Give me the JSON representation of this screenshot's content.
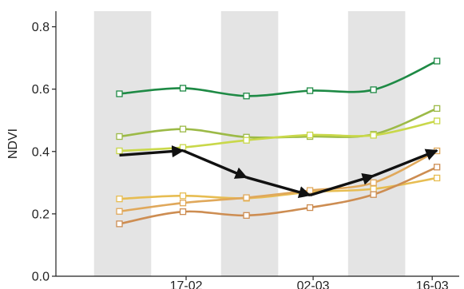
{
  "chart_data": {
    "type": "line",
    "title": "",
    "xlabel": "",
    "ylabel": "NDVI",
    "ylim": [
      0,
      0.85
    ],
    "y_ticks": [
      "0.0",
      "0.2",
      "0.4",
      "0.6",
      "0.8"
    ],
    "x_tick_labels": [
      "17-02",
      "02-03",
      "16-03"
    ],
    "x": [
      1,
      2,
      3,
      4,
      5,
      6
    ],
    "grid": false,
    "shaded_bands": [
      [
        0.6,
        1.5
      ],
      [
        2.6,
        3.5
      ],
      [
        4.6,
        5.5
      ]
    ],
    "colors": {
      "band": "#e4e4e4",
      "axis": "#222222",
      "arrow": "#111111"
    },
    "series": [
      {
        "color": "#1e8a45",
        "values": [
          0.585,
          0.603,
          0.578,
          0.595,
          0.598,
          0.69
        ]
      },
      {
        "color": "#9cba47",
        "values": [
          0.448,
          0.472,
          0.446,
          0.448,
          0.455,
          0.538
        ]
      },
      {
        "color": "#c9d84a",
        "values": [
          0.402,
          0.413,
          0.436,
          0.453,
          0.452,
          0.498
        ]
      },
      {
        "color": "#e7bd52",
        "values": [
          0.248,
          0.258,
          0.25,
          0.27,
          0.28,
          0.315
        ]
      },
      {
        "color": "#e0a85b",
        "values": [
          0.208,
          0.235,
          0.252,
          0.275,
          0.3,
          0.402
        ]
      },
      {
        "color": "#cd8d52",
        "values": [
          0.168,
          0.207,
          0.195,
          0.22,
          0.262,
          0.35
        ]
      }
    ],
    "trend_arrows": {
      "values": [
        0.388,
        0.403,
        0.317,
        0.26,
        0.322,
        0.403
      ]
    }
  }
}
